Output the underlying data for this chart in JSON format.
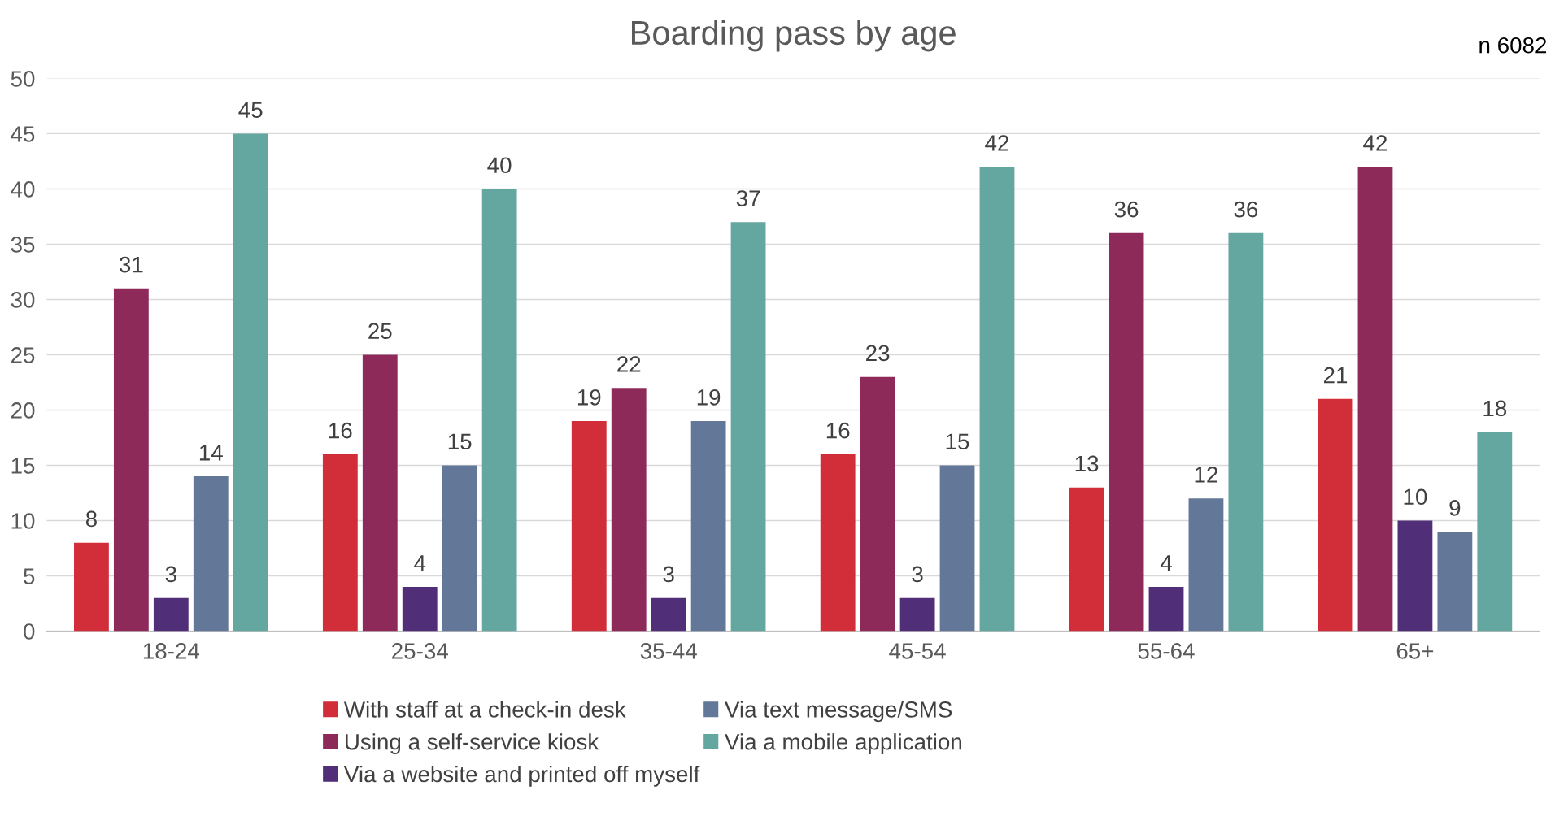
{
  "chart_data": {
    "type": "bar",
    "title": "Boarding pass by age",
    "annotations": [
      "n 6082"
    ],
    "categories": [
      "18-24",
      "25-34",
      "35-44",
      "45-54",
      "55-64",
      "65+"
    ],
    "series": [
      {
        "name": "With staff at a check-in desk",
        "color": "#d12e3a",
        "values": [
          8,
          16,
          19,
          16,
          13,
          21
        ]
      },
      {
        "name": "Using a self-service kiosk",
        "color": "#8e2a5a",
        "values": [
          31,
          25,
          22,
          23,
          36,
          42
        ]
      },
      {
        "name": "Via a website and printed off myself",
        "color": "#512f78",
        "values": [
          3,
          4,
          3,
          3,
          4,
          10
        ]
      },
      {
        "name": "Via text message/SMS",
        "color": "#637899",
        "values": [
          14,
          15,
          19,
          15,
          12,
          9
        ]
      },
      {
        "name": "Via a mobile application",
        "color": "#64a6a0",
        "values": [
          45,
          40,
          37,
          42,
          36,
          18
        ]
      }
    ],
    "ylim": [
      0,
      50
    ],
    "yticks": [
      0,
      5,
      10,
      15,
      20,
      25,
      30,
      35,
      40,
      45,
      50
    ],
    "grid": "y",
    "legend": "bottom",
    "data_labels": true
  }
}
